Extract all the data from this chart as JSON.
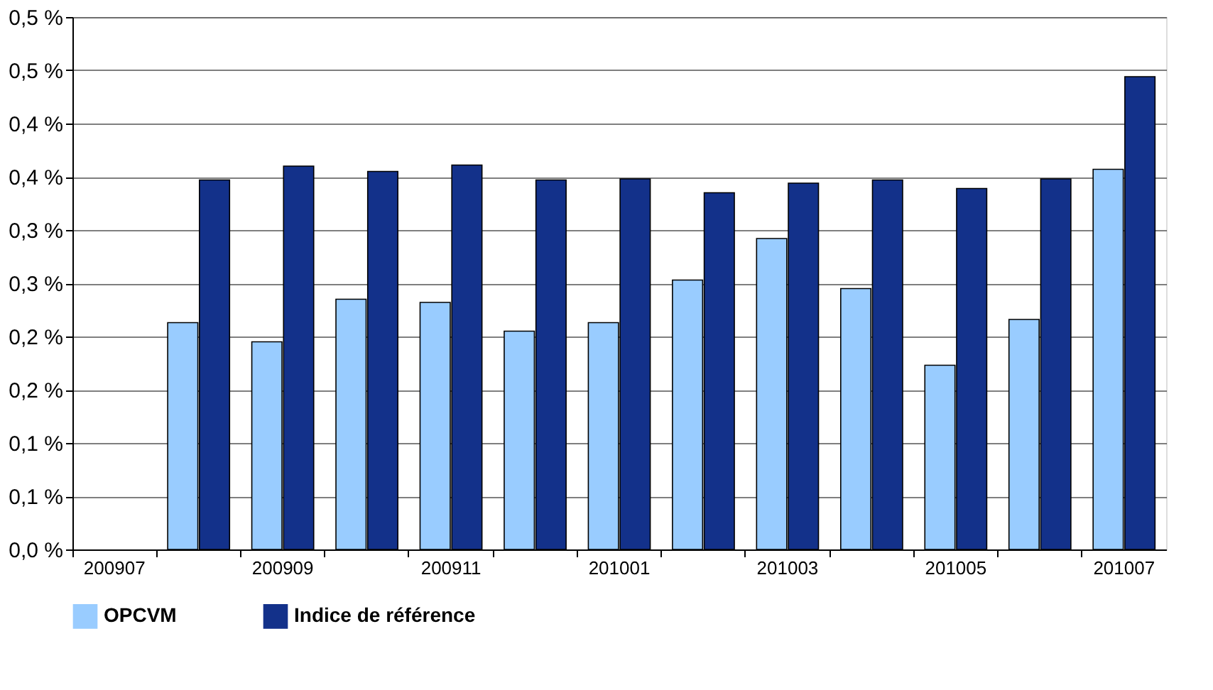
{
  "chart_data": {
    "type": "bar",
    "categories": [
      "200907",
      null,
      "200909",
      null,
      "200911",
      null,
      "201001",
      null,
      "201003",
      null,
      "201005",
      null,
      "201007"
    ],
    "series": [
      {
        "name": "OPCVM",
        "color": "#99ccff",
        "values": [
          null,
          0.213,
          0.195,
          0.235,
          0.232,
          0.205,
          0.213,
          0.253,
          0.292,
          0.245,
          0.173,
          0.216,
          0.357
        ]
      },
      {
        "name": "Indice de référence",
        "color": "#13318a",
        "values": [
          null,
          0.347,
          0.36,
          0.355,
          0.361,
          0.347,
          0.348,
          0.335,
          0.344,
          0.347,
          0.339,
          0.348,
          0.444
        ]
      }
    ],
    "ylim": [
      0,
      0.5
    ],
    "yticks": [
      {
        "value": 0,
        "label": "0,0 %"
      },
      {
        "value": 0.05,
        "label": "0,1 %"
      },
      {
        "value": 0.1,
        "label": "0,1 %"
      },
      {
        "value": 0.15,
        "label": "0,2 %"
      },
      {
        "value": 0.2,
        "label": "0,2 %"
      },
      {
        "value": 0.25,
        "label": "0,3 %"
      },
      {
        "value": 0.3,
        "label": "0,3 %"
      },
      {
        "value": 0.35,
        "label": "0,4 %"
      },
      {
        "value": 0.4,
        "label": "0,4 %"
      },
      {
        "value": 0.45,
        "label": "0,5 %"
      },
      {
        "value": 0.5,
        "label": "0,5 %"
      }
    ],
    "grid": "y",
    "legend": "bottom"
  }
}
